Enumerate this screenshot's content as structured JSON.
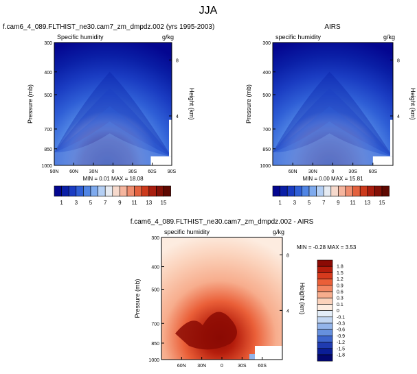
{
  "figure": {
    "title": "JJA"
  },
  "chart_data": [
    {
      "type": "heatmap",
      "name": "model-panel",
      "header": "f.cam6_4_089.FLTHIST_ne30.cam7_zm_dmpdz.002 (yrs 1995-2003)",
      "title": "Specific humidity",
      "units": "g/kg",
      "ylabel": "Pressure (mb)",
      "y2label": "Height (km)",
      "x_ticks": [
        "90N",
        "60N",
        "30N",
        "0",
        "30S",
        "60S",
        "90S"
      ],
      "x_tick_values": [
        90,
        60,
        30,
        0,
        -30,
        -60,
        -90
      ],
      "y_ticks": [
        300,
        400,
        500,
        700,
        850,
        1000
      ],
      "y2_ticks": [
        8,
        4
      ],
      "min_label": "MIN =  0.01  MAX =  18.08",
      "min": 0.01,
      "max": 18.08,
      "xlim": [
        90,
        -90
      ],
      "ylim": [
        1000,
        300
      ]
    },
    {
      "type": "heatmap",
      "name": "obs-panel",
      "header": "AIRS",
      "title": "specific humidity",
      "units": "g/kg",
      "ylabel": "Pressure (mb)",
      "y2label": "Height (km)",
      "x_ticks": [
        "60N",
        "30N",
        "0",
        "30S",
        "60S"
      ],
      "x_tick_values": [
        60,
        30,
        0,
        -30,
        -60
      ],
      "y_ticks": [
        300,
        400,
        500,
        700,
        850,
        1000
      ],
      "y2_ticks": [
        8,
        4
      ],
      "min_label": "MIN =  0.00  MAX =  15.81",
      "min": 0.0,
      "max": 15.81,
      "xlim": [
        90,
        -90
      ],
      "ylim": [
        1000,
        300
      ]
    },
    {
      "type": "heatmap",
      "name": "diff-panel",
      "header": "f.cam6_4_089.FLTHIST_ne30.cam7_zm_dmpdz.002 - AIRS",
      "title": "specific humidity",
      "units": "g/kg",
      "ylabel": "Pressure (mb)",
      "y2label": "Height (km)",
      "x_ticks": [
        "60N",
        "30N",
        "0",
        "30S",
        "60S"
      ],
      "x_tick_values": [
        60,
        30,
        0,
        -30,
        -60
      ],
      "y_ticks": [
        300,
        400,
        500,
        700,
        850,
        1000
      ],
      "y2_ticks": [
        8,
        4
      ],
      "min_label": "MIN = -0.28  MAX =  3.53",
      "min": -0.28,
      "max": 3.53,
      "xlim": [
        90,
        -90
      ],
      "ylim": [
        1000,
        300
      ]
    }
  ],
  "colorbars": {
    "abs": {
      "labels": [
        "1",
        "3",
        "5",
        "7",
        "9",
        "11",
        "13",
        "15"
      ],
      "colors": [
        "#040690",
        "#0a1fa6",
        "#1a3cc2",
        "#2f5fd6",
        "#5085e4",
        "#7eaaee",
        "#b4cff4",
        "#e6ebf2",
        "#f6d9cc",
        "#f5b59e",
        "#ef8d6f",
        "#e3623f",
        "#cc3a1c",
        "#a81d0e",
        "#831006",
        "#5e0801"
      ]
    },
    "diff": {
      "labels": [
        "1.8",
        "1.5",
        "1.2",
        "0.9",
        "0.6",
        "0.3",
        "0.1",
        "0",
        "-0.1",
        "-0.3",
        "-0.6",
        "-0.9",
        "-1.2",
        "-1.5",
        "-1.8"
      ],
      "colors": [
        "#8b0a04",
        "#b51d0c",
        "#d63a1d",
        "#ea5f38",
        "#f38662",
        "#f7ad8d",
        "#fbd2bb",
        "#fdece0",
        "#e3edf8",
        "#c2d6f2",
        "#93b4ea",
        "#6690de",
        "#3c64cc",
        "#1f3bb0",
        "#0a1d96",
        "#030770"
      ]
    }
  }
}
